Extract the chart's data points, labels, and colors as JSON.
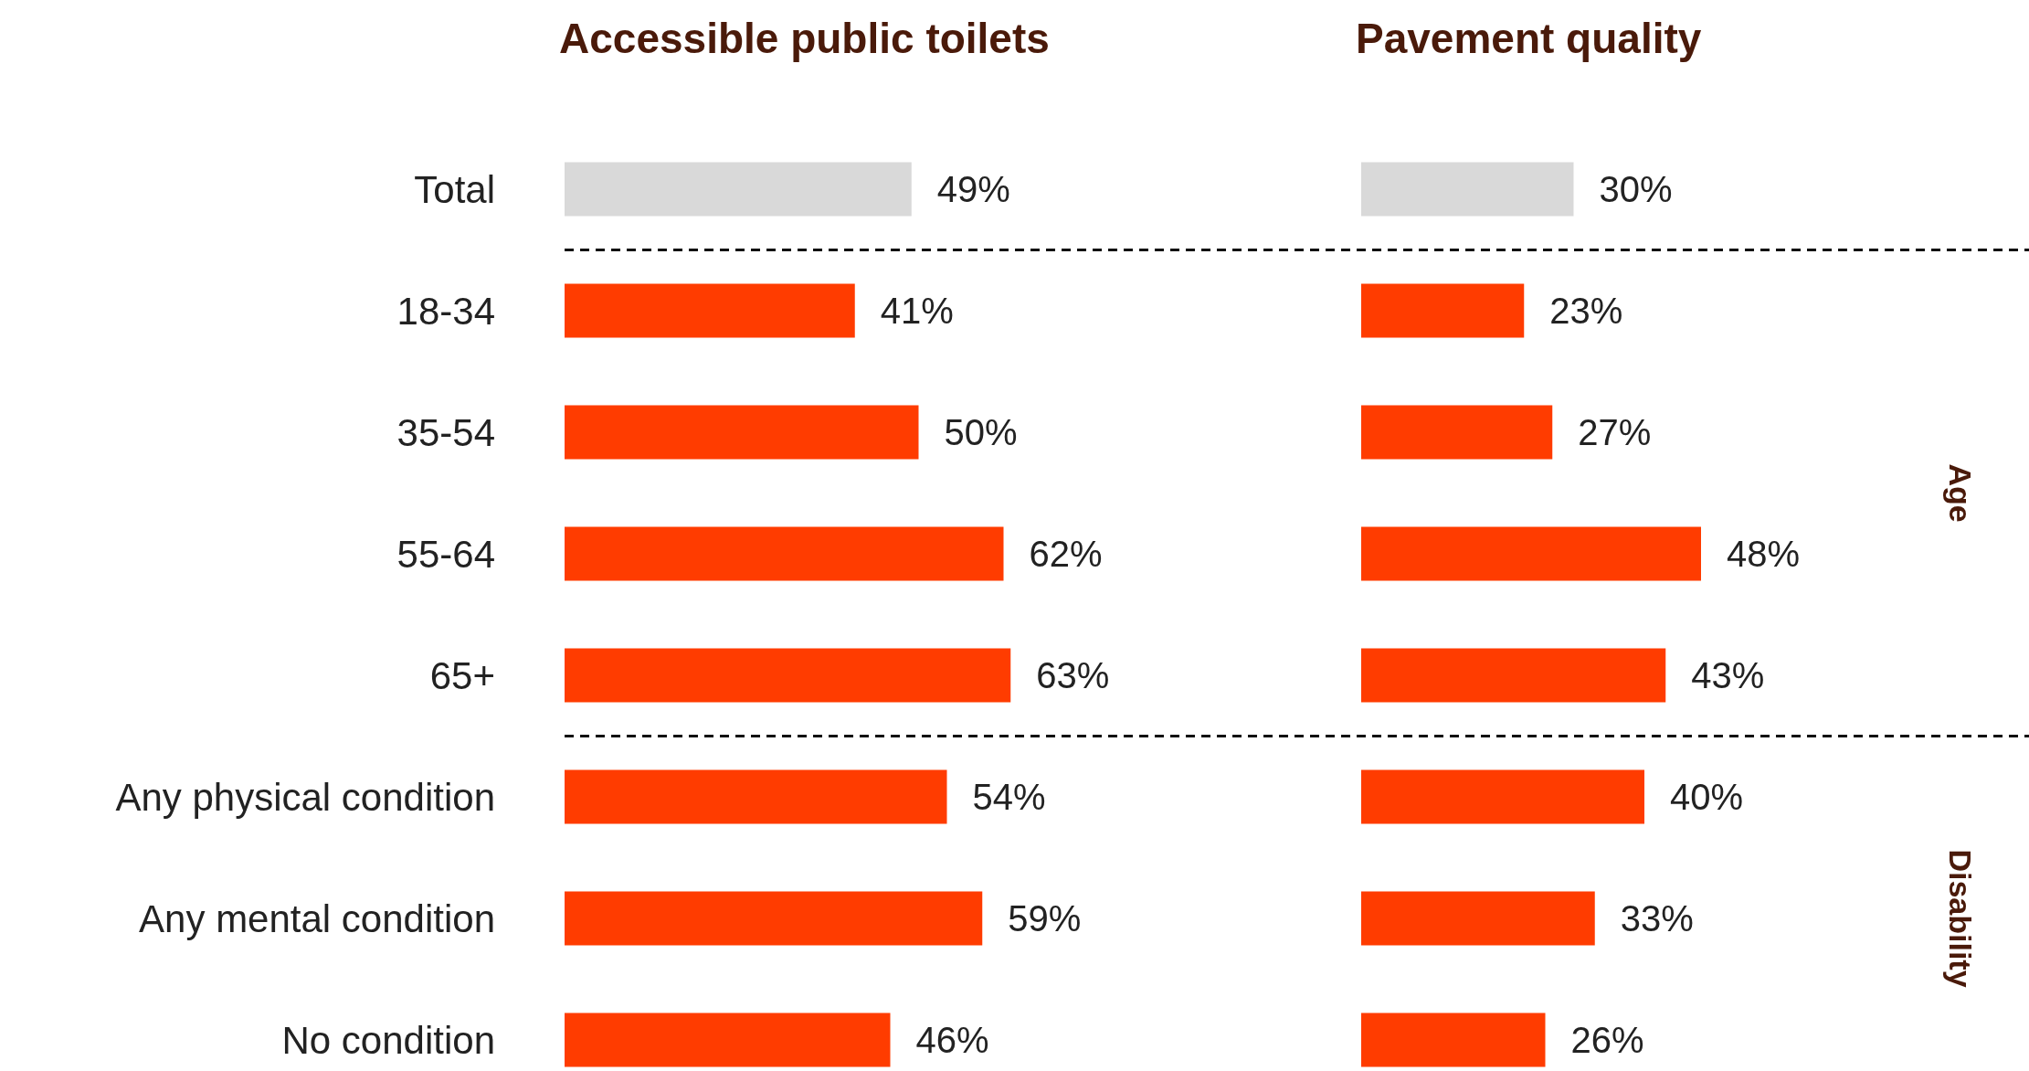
{
  "chart_data": [
    {
      "type": "bar",
      "orientation": "horizontal",
      "title": "Accessible public toilets",
      "categories": [
        "Total",
        "18-34",
        "35-54",
        "55-64",
        "65+",
        "Any physical condition",
        "Any mental condition",
        "No condition"
      ],
      "values": [
        49,
        41,
        50,
        62,
        63,
        54,
        59,
        46
      ],
      "value_labels": [
        "49%",
        "41%",
        "50%",
        "62%",
        "63%",
        "54%",
        "59%",
        "46%"
      ],
      "colors": [
        "#d9d9d9",
        "#ff3c00",
        "#ff3c00",
        "#ff3c00",
        "#ff3c00",
        "#ff3c00",
        "#ff3c00",
        "#ff3c00"
      ],
      "tick_labels": "y"
    },
    {
      "type": "bar",
      "orientation": "horizontal",
      "title": "Pavement quality",
      "categories": [
        null,
        null,
        null,
        null,
        null,
        null,
        null,
        null
      ],
      "values": [
        30,
        23,
        27,
        48,
        43,
        40,
        33,
        26
      ],
      "value_labels": [
        "30%",
        "23%",
        "27%",
        "48%",
        "43%",
        "40%",
        "33%",
        "26%"
      ],
      "colors": [
        "#d9d9d9",
        "#ff3c00",
        "#ff3c00",
        "#ff3c00",
        "#ff3c00",
        "#ff3c00",
        "#ff3c00",
        "#ff3c00"
      ],
      "tick_labels": false,
      "annotations": [
        "Age",
        "Disability"
      ]
    }
  ]
}
